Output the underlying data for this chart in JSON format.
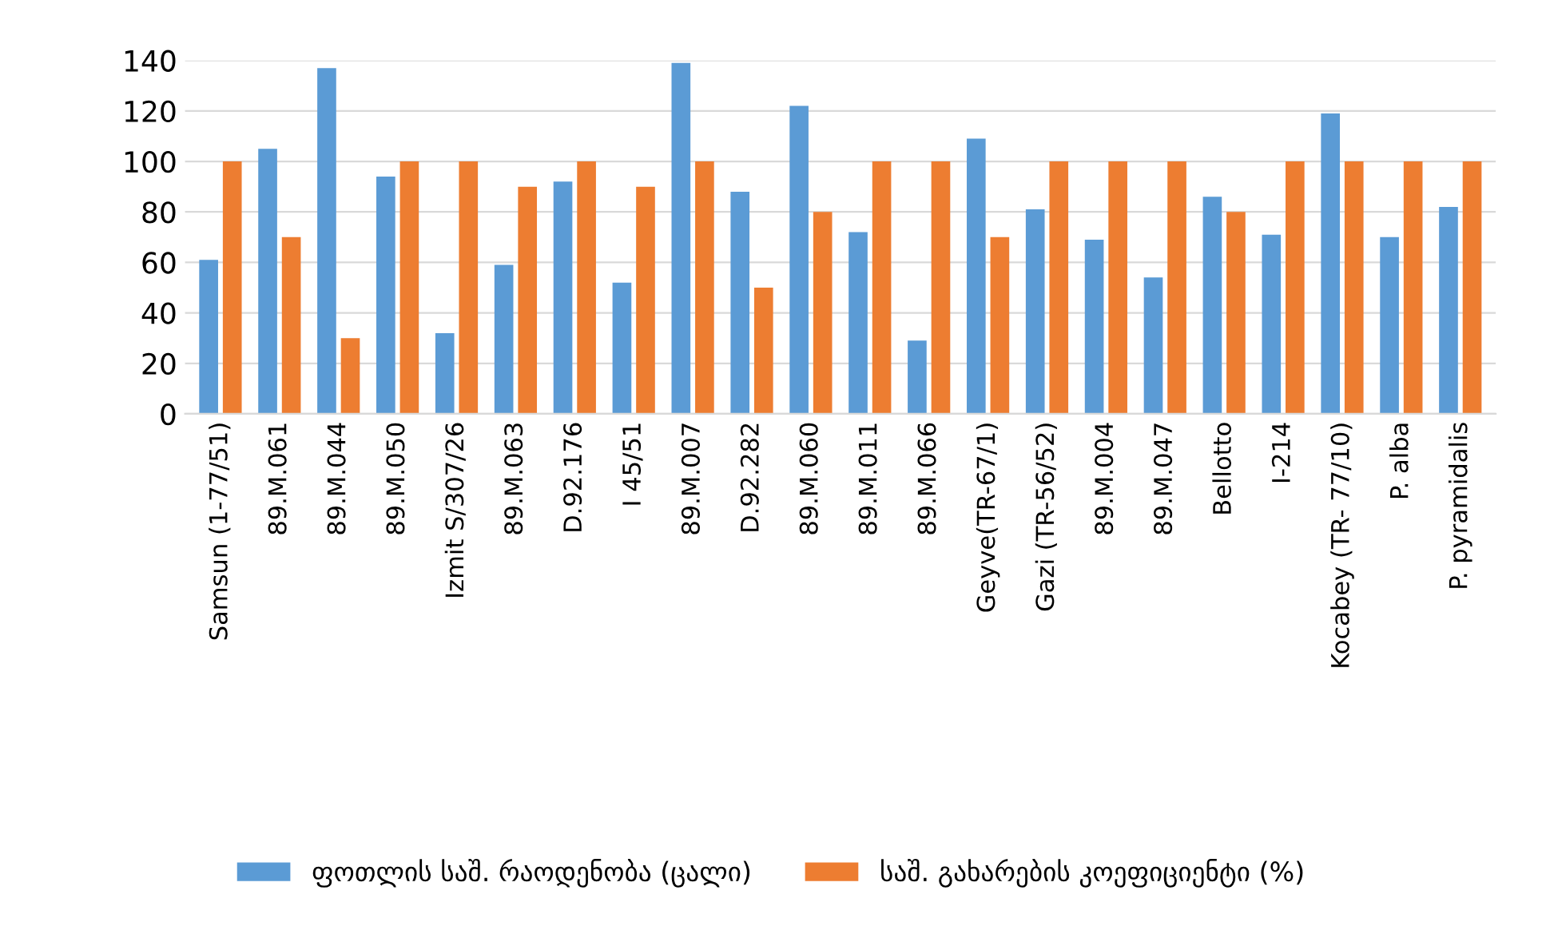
{
  "chart_data": {
    "type": "bar",
    "categories": [
      "Samsun (1-77/51)",
      "89.M.061",
      "89.M.044",
      "89.M.050",
      "Izmit S/307/26",
      "89.M.063",
      "D.92.176",
      "I 45/51",
      "89.M.007",
      "D.92.282",
      "89.M.060",
      "89.M.011",
      "89.M.066",
      "Geyve(TR-67/1)",
      "Gazi (TR-56/52)",
      "89.M.004",
      "89.M.047",
      "Bellotto",
      "I-214",
      "Kocabey (TR- 77/10)",
      "P. alba",
      "P. pyramidalis"
    ],
    "series": [
      {
        "name": "ფოთლის საშ. რაოდენობა (ცალი)",
        "color": "#5b9bd5",
        "values": [
          61,
          105,
          137,
          94,
          32,
          59,
          92,
          52,
          139,
          88,
          122,
          72,
          29,
          109,
          81,
          69,
          54,
          86,
          71,
          119,
          70,
          82
        ]
      },
      {
        "name": "საშ. გახარების კოეფიციენტი (%)",
        "color": "#ed7d31",
        "values": [
          100,
          70,
          30,
          100,
          100,
          90,
          100,
          90,
          100,
          50,
          80,
          100,
          100,
          70,
          100,
          100,
          100,
          80,
          100,
          100,
          100,
          100
        ]
      }
    ],
    "ylim": [
      0,
      140
    ],
    "yticks": [
      0,
      20,
      40,
      60,
      80,
      100,
      120,
      140
    ],
    "grid": "y",
    "legend": "bottom"
  }
}
